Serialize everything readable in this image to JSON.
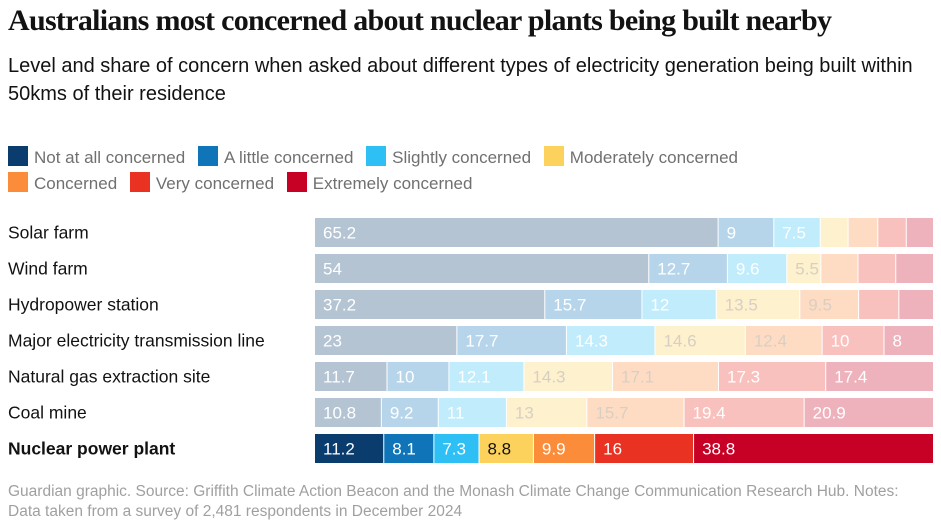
{
  "title": "Australians most concerned about nuclear plants being built nearby",
  "subtitle": "Level and share of concern when asked about different types of electricity generation being built within 50kms of their residence",
  "source": "Guardian graphic. Source: Griffith Climate Action Beacon and the Monash Climate Change Communication Research Hub. Notes: Data taken from a survey of 2,481 respondents in December 2024",
  "chart_data": {
    "type": "bar",
    "orientation": "horizontal",
    "stacked": true,
    "percent_stacked": true,
    "grid": false,
    "legend_position": "top",
    "highlight_category": "Nuclear power plant",
    "categories": [
      "Solar farm",
      "Wind farm",
      "Hydropower station",
      "Major electricity transmission line",
      "Natural gas extraction site",
      "Coal mine",
      "Nuclear power plant"
    ],
    "series": [
      {
        "name": "Not at all concerned",
        "color": "#0a3d6e",
        "values": [
          65.2,
          54,
          37.2,
          23,
          11.7,
          10.8,
          11.2
        ]
      },
      {
        "name": "A little concerned",
        "color": "#0f74b8",
        "values": [
          9,
          12.7,
          15.7,
          17.7,
          10,
          9.2,
          8.1
        ]
      },
      {
        "name": "Slightly concerned",
        "color": "#2ec0f4",
        "values": [
          7.5,
          9.6,
          12,
          14.3,
          12.1,
          11,
          7.3
        ]
      },
      {
        "name": "Moderately concerned",
        "color": "#fdd25c",
        "values": [
          4.5,
          5.5,
          13.5,
          14.6,
          14.3,
          13,
          8.8
        ]
      },
      {
        "name": "Concerned",
        "color": "#fb8c3a",
        "values": [
          4.8,
          6,
          9.5,
          12.4,
          17.1,
          15.7,
          9.9
        ]
      },
      {
        "name": "Very concerned",
        "color": "#ea3223",
        "values": [
          4.6,
          6.1,
          6.5,
          10,
          17.3,
          19.4,
          16
        ]
      },
      {
        "name": "Extremely concerned",
        "color": "#c70025",
        "values": [
          4.4,
          6.1,
          5.6,
          8,
          17.4,
          20.9,
          38.8
        ]
      }
    ],
    "shown_labels": [
      [
        true,
        true,
        true,
        false,
        false,
        false,
        false
      ],
      [
        true,
        true,
        true,
        true,
        false,
        false,
        false
      ],
      [
        true,
        true,
        true,
        true,
        true,
        false,
        false
      ],
      [
        true,
        true,
        true,
        true,
        true,
        true,
        true
      ],
      [
        true,
        true,
        true,
        true,
        true,
        true,
        true
      ],
      [
        true,
        true,
        true,
        true,
        true,
        true,
        true
      ],
      [
        true,
        true,
        true,
        true,
        true,
        true,
        true
      ]
    ]
  }
}
